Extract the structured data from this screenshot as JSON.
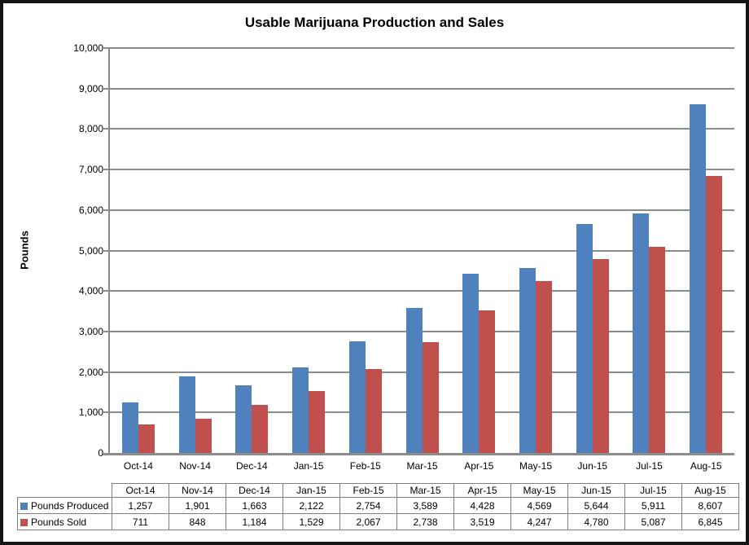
{
  "chart": {
    "title": "Usable Marijuana Production and Sales",
    "y_axis_title": "Pounds"
  },
  "chart_data": {
    "type": "bar",
    "title": "Usable Marijuana Production and Sales",
    "xlabel": "",
    "ylabel": "Pounds",
    "ylim": [
      0,
      10000
    ],
    "ytick_step": 1000,
    "yticks": [
      "0",
      "1,000",
      "2,000",
      "3,000",
      "4,000",
      "5,000",
      "6,000",
      "7,000",
      "8,000",
      "9,000",
      "10,000"
    ],
    "grid": true,
    "legend_position": "data-table-left",
    "gridline_color": "#8C8C8C",
    "categories": [
      "Oct-14",
      "Nov-14",
      "Dec-14",
      "Jan-15",
      "Feb-15",
      "Mar-15",
      "Apr-15",
      "May-15",
      "Jun-15",
      "Jul-15",
      "Aug-15"
    ],
    "series": [
      {
        "name": "Pounds Produced",
        "color": "#4F81BD",
        "values": [
          1257,
          1901,
          1663,
          2122,
          2754,
          3589,
          4428,
          4569,
          5644,
          5911,
          8607
        ],
        "labels": [
          "1,257",
          "1,901",
          "1,663",
          "2,122",
          "2,754",
          "3,589",
          "4,428",
          "4,569",
          "5,644",
          "5,911",
          "8,607"
        ]
      },
      {
        "name": "Pounds Sold",
        "color": "#C0504D",
        "values": [
          711,
          848,
          1184,
          1529,
          2067,
          2738,
          3519,
          4247,
          4780,
          5087,
          6845
        ],
        "labels": [
          "711",
          "848",
          "1,184",
          "1,529",
          "2,067",
          "2,738",
          "3,519",
          "4,247",
          "4,780",
          "5,087",
          "6,845"
        ]
      }
    ]
  }
}
